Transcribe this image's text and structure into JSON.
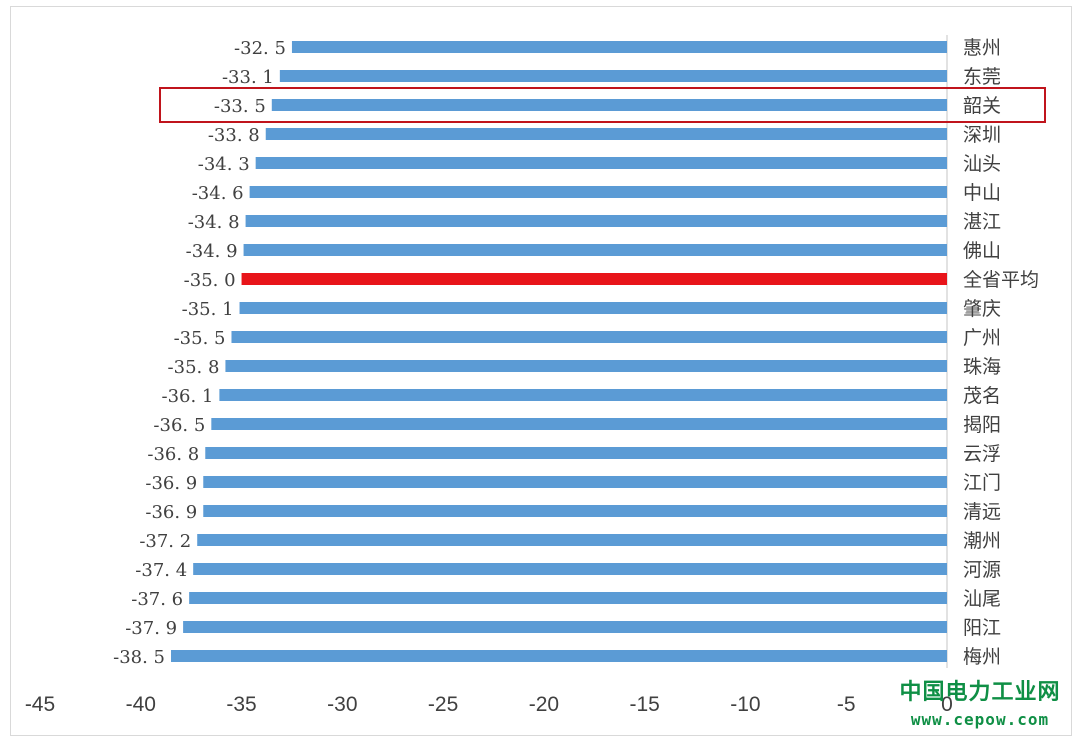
{
  "colors": {
    "bar": "#5b9bd5",
    "highlight_bar": "#e8141a",
    "highlight_box": "#c0141c",
    "axis": "#d9d9d9",
    "value_text": "#404040",
    "category_text": "#404040",
    "tick_text": "#404040"
  },
  "chart_data": {
    "type": "bar",
    "orientation": "horizontal",
    "title": "",
    "xlabel": "",
    "ylabel": "",
    "xlim": [
      -45,
      0
    ],
    "xticks": [
      -45,
      -40,
      -35,
      -30,
      -25,
      -20,
      -15,
      -10,
      -5,
      0
    ],
    "grid": false,
    "legend": "none",
    "categories": [
      "惠州",
      "东莞",
      "韶关",
      "深圳",
      "汕头",
      "中山",
      "湛江",
      "佛山",
      "全省平均",
      "肇庆",
      "广州",
      "珠海",
      "茂名",
      "揭阳",
      "云浮",
      "江门",
      "清远",
      "潮州",
      "河源",
      "汕尾",
      "阳江",
      "梅州"
    ],
    "values": [
      -32.5,
      -33.1,
      -33.5,
      -33.8,
      -34.3,
      -34.6,
      -34.8,
      -34.9,
      -35.0,
      -35.1,
      -35.5,
      -35.8,
      -36.1,
      -36.5,
      -36.8,
      -36.9,
      -36.9,
      -37.2,
      -37.4,
      -37.6,
      -37.9,
      -38.5
    ],
    "value_labels": [
      "-32. 5",
      "-33. 1",
      "-33. 5",
      "-33. 8",
      "-34. 3",
      "-34. 6",
      "-34. 8",
      "-34. 9",
      "-35. 0",
      "-35. 1",
      "-35. 5",
      "-35. 8",
      "-36. 1",
      "-36. 5",
      "-36. 8",
      "-36. 9",
      "-36. 9",
      "-37. 2",
      "-37. 4",
      "-37. 6",
      "-37. 9",
      "-38. 5"
    ],
    "highlight_bar": "全省平均",
    "boxed_category": "韶关"
  },
  "watermark": {
    "name": "中国电力工业网",
    "url": "www.cepow.com"
  }
}
